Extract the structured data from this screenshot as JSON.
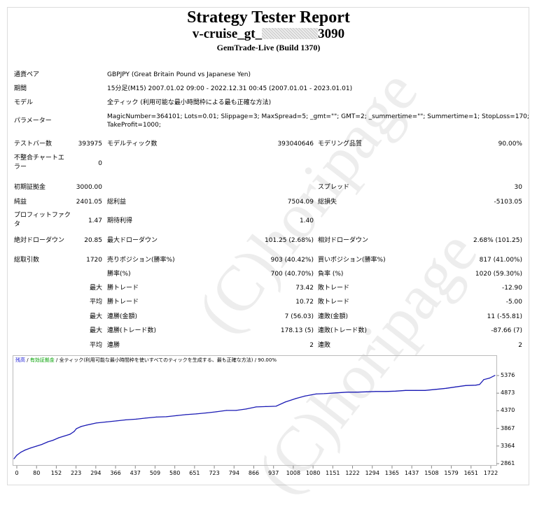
{
  "header": {
    "title": "Strategy Tester Report",
    "ea_prefix": "v-cruise_gt_",
    "ea_suffix": "3090",
    "server": "GemTrade-Live (Build 1370)"
  },
  "info": {
    "pair_label": "通貨ペア",
    "pair_value": "GBPJPY (Great Britain Pound vs Japanese Yen)",
    "period_label": "期間",
    "period_value": "15分足(M15) 2007.01.02 09:00 - 2022.12.31 00:45 (2007.01.01 - 2023.01.01)",
    "model_label": "モデル",
    "model_value": "全ティック (利用可能な最小時間枠による最も正確な方法)",
    "params_label": "パラメーター",
    "params_line1": "MagicNumber=364101; Lots=0.01; Slippage=3; MaxSpread=5; _gmt=\"\"; GMT=2; _summertime=\"\"; Summertime=1; StopLoss=170;",
    "params_line2": "TakeProfit=1000;"
  },
  "stats": {
    "bars_label": "テストバー数",
    "bars_value": "393975",
    "ticks_label": "モデルティック数",
    "ticks_value": "393040646",
    "quality_label": "モデリング品質",
    "quality_value": "90.00%",
    "mismatch_label1": "不整合チャートエ",
    "mismatch_label2": "ラー",
    "mismatch_value": "0",
    "deposit_label": "初期証拠金",
    "deposit_value": "3000.00",
    "spread_label": "スプレッド",
    "spread_value": "30",
    "net_label": "純益",
    "net_value": "2401.05",
    "gross_profit_label": "総利益",
    "gross_profit_value": "7504.09",
    "gross_loss_label": "総損失",
    "gross_loss_value": "-5103.05",
    "pf_label1": "プロフィットファク",
    "pf_label2": "タ",
    "pf_value": "1.47",
    "expected_label": "期待利得",
    "expected_value": "1.40",
    "abs_dd_label": "絶対ドローダウン",
    "abs_dd_value": "20.85",
    "max_dd_label": "最大ドローダウン",
    "max_dd_value": "101.25 (2.68%)",
    "rel_dd_label": "相対ドローダウン",
    "rel_dd_value": "2.68% (101.25)",
    "trades_label": "総取引数",
    "trades_value": "1720",
    "short_label": "売りポジション(勝率%)",
    "short_value": "903 (40.42%)",
    "long_label": "買いポジション(勝率%)",
    "long_value": "817 (41.00%)",
    "win_rate_label": "勝率(%)",
    "win_rate_value": "700 (40.70%)",
    "loss_rate_label": "負率 (%)",
    "loss_rate_value": "1020 (59.30%)",
    "max_word": "最大",
    "avg_word": "平均",
    "win_trade_label": "勝トレード",
    "max_win_value": "73.42",
    "avg_win_value": "10.72",
    "loss_trade_label": "敗トレード",
    "max_loss_value": "-12.90",
    "avg_loss_value": "-5.00",
    "consec_win_amt_label": "連勝(金額)",
    "consec_win_amt_value": "7 (56.03)",
    "consec_loss_amt_label": "連敗(金額)",
    "consec_loss_amt_value": "11 (-55.81)",
    "consec_win_trades_label": "連勝(トレード数)",
    "consec_win_trades_value": "178.13 (5)",
    "consec_loss_trades_label": "連敗(トレード数)",
    "consec_loss_trades_value": "-87.66 (7)",
    "avg_consec_win_label": "連勝",
    "avg_consec_win_value": "2",
    "avg_consec_loss_label": "連敗",
    "avg_consec_loss_value": "2"
  },
  "chart_legend": {
    "balance": "残高",
    "sep": " / ",
    "margin": "有効証拠金",
    "desc": " / 全ティック(利用可能な最小時間枠を使いすべてのティックを生成する、最も正確な方法) / 90.00%"
  },
  "watermark": "(C)horipage",
  "colors": {
    "balance_line": "#1a1ab4"
  },
  "chart_data": {
    "type": "line",
    "title": "",
    "xlabel": "",
    "ylabel": "",
    "ylim": [
      2861,
      5500
    ],
    "xlim": [
      0,
      1720
    ],
    "yticks": [
      "5376",
      "4873",
      "4370",
      "3867",
      "3364",
      "2861"
    ],
    "xticks": [
      "0",
      "80",
      "152",
      "223",
      "294",
      "366",
      "437",
      "509",
      "580",
      "651",
      "723",
      "794",
      "866",
      "937",
      "1008",
      "1080",
      "1151",
      "1222",
      "1294",
      "1365",
      "1437",
      "1508",
      "1579",
      "1651",
      "1722"
    ],
    "series": [
      {
        "x": [
          0,
          10,
          25,
          40,
          60,
          80,
          100,
          120,
          140,
          160,
          180,
          200,
          215,
          223,
          240,
          260,
          294,
          330,
          366,
          400,
          437,
          470,
          509,
          545,
          580,
          615,
          651,
          690,
          723,
          760,
          794,
          830,
          866,
          900,
          937,
          970,
          1008,
          1040,
          1080,
          1110,
          1151,
          1190,
          1222,
          1260,
          1294,
          1330,
          1365,
          1400,
          1437,
          1470,
          1508,
          1545,
          1579,
          1615,
          1651,
          1665,
          1680,
          1700,
          1720
        ],
        "y": [
          3000,
          3100,
          3190,
          3250,
          3310,
          3360,
          3410,
          3480,
          3530,
          3600,
          3650,
          3700,
          3780,
          3860,
          3920,
          3960,
          4020,
          4050,
          4080,
          4110,
          4130,
          4160,
          4190,
          4200,
          4230,
          4260,
          4280,
          4310,
          4340,
          4380,
          4380,
          4420,
          4480,
          4490,
          4500,
          4620,
          4720,
          4790,
          4850,
          4860,
          4880,
          4900,
          4900,
          4910,
          4920,
          4920,
          4930,
          4950,
          4950,
          4950,
          4980,
          5010,
          5050,
          5090,
          5100,
          5120,
          5260,
          5300,
          5380
        ]
      }
    ]
  }
}
